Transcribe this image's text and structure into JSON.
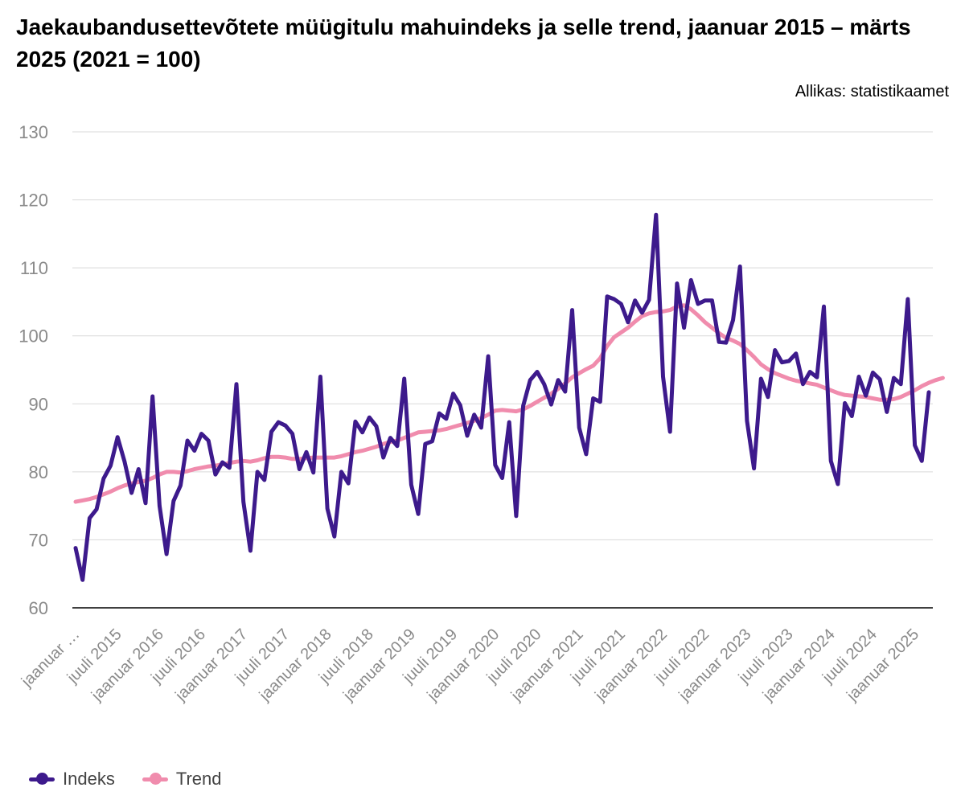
{
  "title": "Jaekaubandusettevõtete müügitulu mahuindeks ja selle trend, jaanuar 2015 – märts 2025 (2021 = 100)",
  "source": "Allikas: statistikaamet",
  "chart_data": {
    "type": "line",
    "x_tick_labels": [
      "jaanuar …",
      "juuli 2015",
      "jaanuar 2016",
      "juuli 2016",
      "jaanuar 2017",
      "juuli 2017",
      "jaanuar 2018",
      "juuli 2018",
      "jaanuar 2019",
      "juuli 2019",
      "jaanuar 2020",
      "juuli 2020",
      "jaanuar 2021",
      "juuli 2021",
      "jaanuar 2022",
      "juuli 2022",
      "jaanuar 2023",
      "juuli 2023",
      "jaanuar 2024",
      "juuli 2024",
      "jaanuar 2025"
    ],
    "x_start": "2015-01",
    "x_end": "2025-03",
    "ylim": [
      60,
      130
    ],
    "y_ticks": [
      60,
      70,
      80,
      90,
      100,
      110,
      120,
      130
    ],
    "grid": true,
    "legend_position": "bottom-left",
    "series": [
      {
        "name": "Indeks",
        "color": "#3d1a8c",
        "values": [
          68.8,
          64.1,
          73.2,
          74.5,
          79.0,
          80.9,
          85.1,
          81.5,
          76.9,
          80.4,
          75.4,
          91.1,
          75.0,
          67.9,
          75.7,
          78.0,
          84.6,
          83.1,
          85.6,
          84.6,
          79.6,
          81.4,
          80.6,
          92.9,
          75.6,
          68.4,
          80.0,
          78.8,
          85.9,
          87.3,
          86.8,
          85.6,
          80.4,
          82.9,
          79.9,
          94.0,
          74.6,
          70.5,
          80.0,
          78.3,
          87.4,
          85.8,
          88.0,
          86.7,
          82.1,
          85.0,
          83.8,
          93.7,
          78.1,
          73.8,
          84.1,
          84.5,
          88.6,
          87.8,
          91.5,
          89.8,
          85.3,
          88.4,
          86.5,
          97.0,
          81.0,
          79.1,
          87.3,
          73.5,
          89.7,
          93.5,
          94.7,
          92.9,
          89.9,
          93.5,
          91.8,
          103.8,
          86.5,
          82.6,
          90.8,
          90.3,
          105.8,
          105.4,
          104.7,
          102.0,
          105.2,
          103.4,
          105.3,
          117.8,
          94.0,
          85.9,
          107.7,
          101.2,
          108.2,
          104.7,
          105.2,
          105.2,
          99.1,
          99.0,
          102.3,
          110.2,
          87.5,
          80.5,
          93.7,
          91.0,
          97.9,
          96.1,
          96.3,
          97.4,
          92.9,
          94.7,
          93.9,
          104.3,
          81.6,
          78.2,
          90.1,
          88.2,
          94.0,
          91.2,
          94.6,
          93.6,
          88.8,
          93.8,
          92.9,
          105.4,
          83.9,
          81.6,
          91.7
        ]
      },
      {
        "name": "Trend",
        "color": "#f08cad",
        "values": [
          75.6,
          75.8,
          76.0,
          76.3,
          76.7,
          77.1,
          77.6,
          78.0,
          78.3,
          78.5,
          78.7,
          79.1,
          79.6,
          80.0,
          80.0,
          79.9,
          80.1,
          80.4,
          80.6,
          80.8,
          80.9,
          81.1,
          81.3,
          81.5,
          81.6,
          81.5,
          81.7,
          82.0,
          82.2,
          82.2,
          82.1,
          81.9,
          81.9,
          82.0,
          82.1,
          82.1,
          82.1,
          82.1,
          82.3,
          82.6,
          82.9,
          83.1,
          83.4,
          83.7,
          84.1,
          84.4,
          84.6,
          85.0,
          85.4,
          85.8,
          85.9,
          86.0,
          86.1,
          86.3,
          86.6,
          86.9,
          87.2,
          87.5,
          87.9,
          88.4,
          89.0,
          89.1,
          89.0,
          88.9,
          89.2,
          89.7,
          90.3,
          90.9,
          91.5,
          92.2,
          93.0,
          93.9,
          94.5,
          95.1,
          95.6,
          96.7,
          98.5,
          99.8,
          100.5,
          101.2,
          102.1,
          102.9,
          103.3,
          103.5,
          103.6,
          103.8,
          104.3,
          104.5,
          103.9,
          103.0,
          102.0,
          101.2,
          100.4,
          99.7,
          99.3,
          98.8,
          97.9,
          96.9,
          95.8,
          95.1,
          94.5,
          94.1,
          93.7,
          93.4,
          93.2,
          93.0,
          92.8,
          92.4,
          92.0,
          91.6,
          91.3,
          91.2,
          91.1,
          91.0,
          90.8,
          90.6,
          90.6,
          90.7,
          91.0,
          91.5,
          92.0,
          92.6,
          93.1,
          93.5,
          93.8
        ]
      }
    ]
  },
  "legend": {
    "items": [
      {
        "label": "Indeks"
      },
      {
        "label": "Trend"
      }
    ]
  }
}
